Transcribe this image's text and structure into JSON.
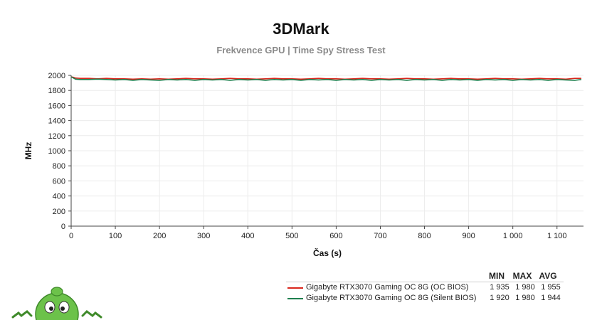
{
  "chart_data": {
    "type": "line",
    "title": "3DMark",
    "subtitle": "Frekvence GPU | Time Spy Stress Test",
    "xlabel": "Čas (s)",
    "ylabel": "MHz",
    "xlim": [
      0,
      1160
    ],
    "ylim": [
      0,
      2000
    ],
    "x_ticks": [
      0,
      100,
      200,
      300,
      400,
      500,
      600,
      700,
      800,
      900,
      1000,
      1100
    ],
    "x_tick_labels": [
      "0",
      "100",
      "200",
      "300",
      "400",
      "500",
      "600",
      "700",
      "800",
      "900",
      "1 000",
      "1 100"
    ],
    "y_ticks": [
      0,
      200,
      400,
      600,
      800,
      1000,
      1200,
      1400,
      1600,
      1800,
      2000
    ],
    "y_tick_labels": [
      "0",
      "200",
      "400",
      "600",
      "800",
      "1000",
      "1200",
      "1400",
      "1600",
      "1800",
      "2000"
    ],
    "grid": true,
    "legend_position": "bottom-right",
    "legend_columns": [
      "MIN",
      "MAX",
      "AVG"
    ],
    "series": [
      {
        "name": "Gigabyte RTX3070 Gaming OC 8G (OC BIOS)",
        "color": "#d9261c",
        "min": "1 935",
        "max": "1 980",
        "avg": "1 955",
        "x": [
          0,
          5,
          10,
          20,
          40,
          60,
          80,
          100,
          120,
          140,
          160,
          180,
          200,
          220,
          240,
          260,
          280,
          300,
          320,
          340,
          360,
          380,
          400,
          420,
          440,
          460,
          480,
          500,
          520,
          540,
          560,
          580,
          600,
          620,
          640,
          660,
          680,
          700,
          720,
          740,
          760,
          780,
          800,
          820,
          840,
          860,
          880,
          900,
          920,
          940,
          960,
          980,
          1000,
          1020,
          1040,
          1060,
          1080,
          1100,
          1120,
          1140,
          1155
        ],
        "y": [
          1980,
          1975,
          1965,
          1960,
          1960,
          1955,
          1960,
          1955,
          1955,
          1950,
          1955,
          1950,
          1955,
          1950,
          1955,
          1960,
          1955,
          1955,
          1950,
          1955,
          1960,
          1955,
          1955,
          1950,
          1955,
          1960,
          1955,
          1955,
          1950,
          1955,
          1960,
          1955,
          1955,
          1950,
          1955,
          1960,
          1955,
          1955,
          1950,
          1955,
          1960,
          1955,
          1955,
          1950,
          1955,
          1960,
          1955,
          1955,
          1950,
          1955,
          1960,
          1955,
          1955,
          1950,
          1955,
          1960,
          1955,
          1955,
          1950,
          1960,
          1960
        ]
      },
      {
        "name": "Gigabyte RTX3070 Gaming OC 8G (Silent BIOS)",
        "color": "#1e7f4e",
        "min": "1 920",
        "max": "1 980",
        "avg": "1 944",
        "x": [
          0,
          5,
          10,
          20,
          40,
          60,
          80,
          100,
          120,
          140,
          160,
          180,
          200,
          220,
          240,
          260,
          280,
          300,
          320,
          340,
          360,
          380,
          400,
          420,
          440,
          460,
          480,
          500,
          520,
          540,
          560,
          580,
          600,
          620,
          640,
          660,
          680,
          700,
          720,
          740,
          760,
          780,
          800,
          820,
          840,
          860,
          880,
          900,
          920,
          940,
          960,
          980,
          1000,
          1020,
          1040,
          1060,
          1080,
          1100,
          1120,
          1140,
          1155
        ],
        "y": [
          1980,
          1965,
          1950,
          1945,
          1945,
          1950,
          1945,
          1940,
          1945,
          1935,
          1945,
          1940,
          1935,
          1945,
          1940,
          1945,
          1935,
          1945,
          1940,
          1945,
          1935,
          1945,
          1940,
          1945,
          1935,
          1945,
          1940,
          1945,
          1935,
          1945,
          1940,
          1945,
          1935,
          1945,
          1940,
          1945,
          1935,
          1945,
          1940,
          1945,
          1935,
          1945,
          1940,
          1945,
          1935,
          1945,
          1940,
          1945,
          1935,
          1945,
          1940,
          1945,
          1935,
          1945,
          1940,
          1945,
          1935,
          1945,
          1940,
          1935,
          1945
        ]
      }
    ]
  }
}
